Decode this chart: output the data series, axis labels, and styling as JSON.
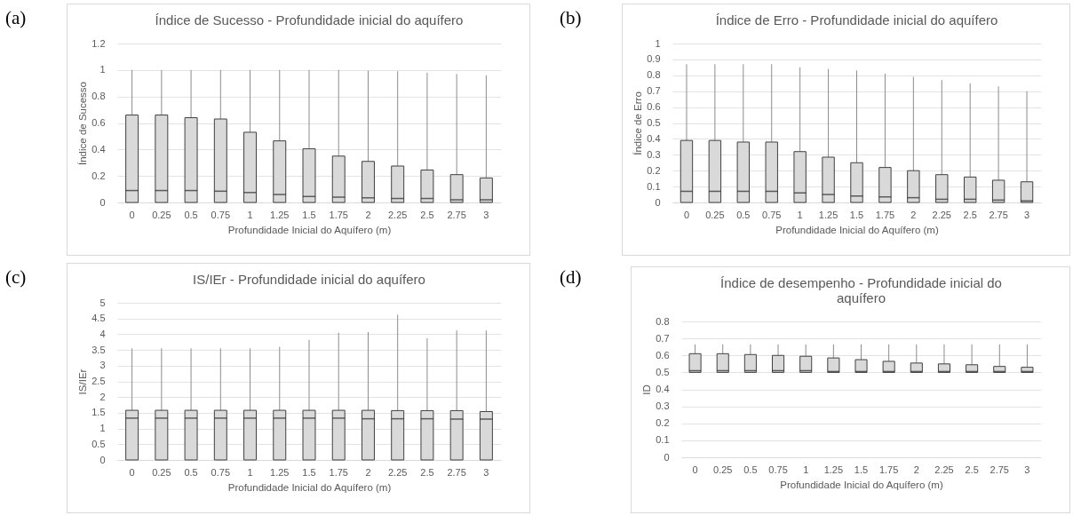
{
  "chart_data": [
    {
      "type": "box",
      "title": "Índice de Sucesso - Profundidade inicial do aquífero",
      "xlabel": "Profundidade Inicial do Aquífero (m)",
      "ylabel": "Índice de Sucesso",
      "annotations": [
        "(a)"
      ],
      "categories": [
        "0",
        "0.25",
        "0.5",
        "0.75",
        "1",
        "1.25",
        "1.5",
        "1.75",
        "2",
        "2.25",
        "2.5",
        "2.75",
        "3"
      ],
      "ylim": [
        0,
        1.2
      ],
      "yticks": [
        0,
        0.2,
        0.4,
        0.6,
        0.8,
        1,
        1.2
      ],
      "grid": "y",
      "color": "#d9d9d9",
      "boxes": [
        {
          "low": 0,
          "q1": 0,
          "median": 0.09,
          "q3": 0.66,
          "high": 1
        },
        {
          "low": 0,
          "q1": 0,
          "median": 0.09,
          "q3": 0.66,
          "high": 1
        },
        {
          "low": 0,
          "q1": 0,
          "median": 0.09,
          "q3": 0.64,
          "high": 1
        },
        {
          "low": 0,
          "q1": 0,
          "median": 0.085,
          "q3": 0.63,
          "high": 1
        },
        {
          "low": 0,
          "q1": 0,
          "median": 0.075,
          "q3": 0.53,
          "high": 1
        },
        {
          "low": 0,
          "q1": 0,
          "median": 0.06,
          "q3": 0.465,
          "high": 1
        },
        {
          "low": 0,
          "q1": 0,
          "median": 0.045,
          "q3": 0.405,
          "high": 1
        },
        {
          "low": 0,
          "q1": 0,
          "median": 0.04,
          "q3": 0.35,
          "high": 1
        },
        {
          "low": 0,
          "q1": 0,
          "median": 0.035,
          "q3": 0.31,
          "high": 0.995
        },
        {
          "low": 0,
          "q1": 0,
          "median": 0.03,
          "q3": 0.275,
          "high": 0.99
        },
        {
          "low": 0,
          "q1": 0,
          "median": 0.03,
          "q3": 0.245,
          "high": 0.98
        },
        {
          "low": 0,
          "q1": 0,
          "median": 0.02,
          "q3": 0.21,
          "high": 0.97
        },
        {
          "low": 0,
          "q1": 0,
          "median": 0.02,
          "q3": 0.185,
          "high": 0.96
        }
      ]
    },
    {
      "type": "box",
      "title": "Índice de Erro - Profundidade inicial do aquífero",
      "xlabel": "Profundidade Inicial do Aquífero (m)",
      "ylabel": "Índice de Erro",
      "annotations": [
        "(b)"
      ],
      "categories": [
        "0",
        "0.25",
        "0.5",
        "0.75",
        "1",
        "1.25",
        "1.5",
        "1.75",
        "2",
        "2.25",
        "2.5",
        "2.75",
        "3"
      ],
      "ylim": [
        0,
        1
      ],
      "yticks": [
        0,
        0.1,
        0.2,
        0.3,
        0.4,
        0.5,
        0.6,
        0.7,
        0.8,
        0.9,
        1
      ],
      "grid": "y",
      "color": "#d9d9d9",
      "boxes": [
        {
          "low": 0,
          "q1": 0,
          "median": 0.07,
          "q3": 0.39,
          "high": 0.87
        },
        {
          "low": 0,
          "q1": 0,
          "median": 0.07,
          "q3": 0.39,
          "high": 0.87
        },
        {
          "low": 0,
          "q1": 0,
          "median": 0.07,
          "q3": 0.38,
          "high": 0.87
        },
        {
          "low": 0,
          "q1": 0,
          "median": 0.07,
          "q3": 0.38,
          "high": 0.87
        },
        {
          "low": 0,
          "q1": 0,
          "median": 0.06,
          "q3": 0.32,
          "high": 0.85
        },
        {
          "low": 0,
          "q1": 0,
          "median": 0.05,
          "q3": 0.285,
          "high": 0.84
        },
        {
          "low": 0,
          "q1": 0,
          "median": 0.04,
          "q3": 0.25,
          "high": 0.83
        },
        {
          "low": 0,
          "q1": 0,
          "median": 0.035,
          "q3": 0.22,
          "high": 0.81
        },
        {
          "low": 0,
          "q1": 0,
          "median": 0.03,
          "q3": 0.2,
          "high": 0.79
        },
        {
          "low": 0,
          "q1": 0,
          "median": 0.02,
          "q3": 0.175,
          "high": 0.77
        },
        {
          "low": 0,
          "q1": 0,
          "median": 0.02,
          "q3": 0.16,
          "high": 0.75
        },
        {
          "low": 0,
          "q1": 0,
          "median": 0.015,
          "q3": 0.14,
          "high": 0.73
        },
        {
          "low": 0,
          "q1": 0,
          "median": 0.01,
          "q3": 0.13,
          "high": 0.7
        }
      ]
    },
    {
      "type": "box",
      "title": "IS/IEr - Profundidade inicial do aquífero",
      "xlabel": "Profundidade Inicial do Aquífero (m)",
      "ylabel": "IS/IEr",
      "annotations": [
        "(c)"
      ],
      "categories": [
        "0",
        "0.25",
        "0.5",
        "0.75",
        "1",
        "1.25",
        "1.5",
        "1.75",
        "2",
        "2.25",
        "2.5",
        "2.75",
        "3"
      ],
      "ylim": [
        0,
        5
      ],
      "yticks": [
        0,
        0.5,
        1,
        1.5,
        2,
        2.5,
        3,
        3.5,
        4,
        4.5,
        5
      ],
      "grid": "y",
      "color": "#d9d9d9",
      "boxes": [
        {
          "low": 0,
          "q1": 0,
          "median": 1.33,
          "q3": 1.58,
          "high": 3.55
        },
        {
          "low": 0,
          "q1": 0,
          "median": 1.33,
          "q3": 1.58,
          "high": 3.55
        },
        {
          "low": 0,
          "q1": 0,
          "median": 1.33,
          "q3": 1.58,
          "high": 3.55
        },
        {
          "low": 0,
          "q1": 0,
          "median": 1.33,
          "q3": 1.58,
          "high": 3.55
        },
        {
          "low": 0,
          "q1": 0,
          "median": 1.33,
          "q3": 1.58,
          "high": 3.55
        },
        {
          "low": 0,
          "q1": 0,
          "median": 1.33,
          "q3": 1.58,
          "high": 3.6
        },
        {
          "low": 0,
          "q1": 0,
          "median": 1.33,
          "q3": 1.58,
          "high": 3.82
        },
        {
          "low": 0,
          "q1": 0,
          "median": 1.33,
          "q3": 1.58,
          "high": 4.05
        },
        {
          "low": 0,
          "q1": 0,
          "median": 1.31,
          "q3": 1.58,
          "high": 4.07
        },
        {
          "low": 0,
          "q1": 0,
          "median": 1.31,
          "q3": 1.57,
          "high": 4.62
        },
        {
          "low": 0,
          "q1": 0,
          "median": 1.31,
          "q3": 1.57,
          "high": 3.87
        },
        {
          "low": 0,
          "q1": 0,
          "median": 1.3,
          "q3": 1.57,
          "high": 4.12
        },
        {
          "low": 0,
          "q1": 0,
          "median": 1.3,
          "q3": 1.54,
          "high": 4.12
        }
      ]
    },
    {
      "type": "box",
      "title": "Índice de desempenho - Profundidade inicial do aquífero",
      "xlabel": "Profundidade Inicial do Aquífero (m)",
      "ylabel": "ID",
      "annotations": [
        "(d)"
      ],
      "categories": [
        "0",
        "0.25",
        "0.5",
        "0.75",
        "1",
        "1.25",
        "1.5",
        "1.75",
        "2",
        "2.25",
        "2.5",
        "2.75",
        "3"
      ],
      "ylim": [
        0,
        0.8
      ],
      "yticks": [
        0,
        0.1,
        0.2,
        0.3,
        0.4,
        0.5,
        0.6,
        0.7,
        0.8
      ],
      "grid": "y",
      "color": "#d9d9d9",
      "boxes": [
        {
          "low": 0.5,
          "q1": 0.5,
          "median": 0.51,
          "q3": 0.61,
          "high": 0.665
        },
        {
          "low": 0.5,
          "q1": 0.5,
          "median": 0.51,
          "q3": 0.61,
          "high": 0.665
        },
        {
          "low": 0.5,
          "q1": 0.5,
          "median": 0.51,
          "q3": 0.605,
          "high": 0.665
        },
        {
          "low": 0.5,
          "q1": 0.5,
          "median": 0.51,
          "q3": 0.6,
          "high": 0.665
        },
        {
          "low": 0.5,
          "q1": 0.5,
          "median": 0.51,
          "q3": 0.595,
          "high": 0.665
        },
        {
          "low": 0.5,
          "q1": 0.5,
          "median": 0.505,
          "q3": 0.585,
          "high": 0.665
        },
        {
          "low": 0.5,
          "q1": 0.5,
          "median": 0.505,
          "q3": 0.575,
          "high": 0.665
        },
        {
          "low": 0.5,
          "q1": 0.5,
          "median": 0.505,
          "q3": 0.565,
          "high": 0.665
        },
        {
          "low": 0.5,
          "q1": 0.5,
          "median": 0.505,
          "q3": 0.555,
          "high": 0.665
        },
        {
          "low": 0.5,
          "q1": 0.5,
          "median": 0.505,
          "q3": 0.55,
          "high": 0.665
        },
        {
          "low": 0.5,
          "q1": 0.5,
          "median": 0.505,
          "q3": 0.545,
          "high": 0.665
        },
        {
          "low": 0.5,
          "q1": 0.5,
          "median": 0.505,
          "q3": 0.535,
          "high": 0.665
        },
        {
          "low": 0.5,
          "q1": 0.5,
          "median": 0.505,
          "q3": 0.53,
          "high": 0.665
        }
      ]
    }
  ]
}
